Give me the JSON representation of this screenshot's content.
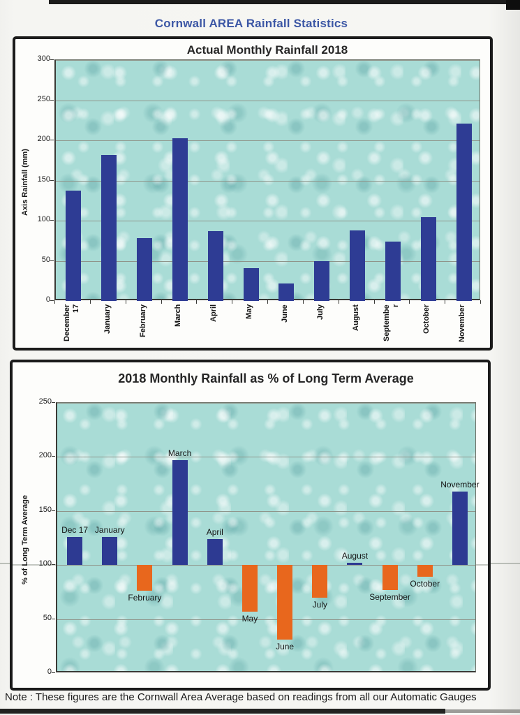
{
  "page": {
    "title": "Cornwall AREA Rainfall Statistics",
    "title_color": "#3c57a5",
    "note": "Note : These figures are the Cornwall Area Average based on readings from all our Automatic Gauges"
  },
  "chart_data": [
    {
      "type": "bar",
      "title": "Actual Monthly Rainfall 2018",
      "ylabel": "Axis Rainfall (mm)",
      "categories": [
        "December 17",
        "January",
        "February",
        "March",
        "April",
        "May",
        "June",
        "July",
        "August",
        "September",
        "October",
        "November"
      ],
      "category_display": [
        "December\n17",
        "January",
        "February",
        "March",
        "April",
        "May",
        "June",
        "July",
        "August",
        "Septembe\nr",
        "October",
        "November"
      ],
      "values": [
        137,
        182,
        78,
        203,
        87,
        41,
        22,
        50,
        88,
        74,
        104,
        221
      ],
      "ylim": [
        0,
        300
      ],
      "ytick_step": 50,
      "grid": true,
      "legend": "none",
      "bar_color": "#2e3c94",
      "plot_background": "water-droplets-teal"
    },
    {
      "type": "bar",
      "title": "2018 Monthly Rainfall as % of Long Term Average",
      "ylabel": "% of Long Term Average",
      "categories": [
        "Dec 17",
        "January",
        "February",
        "March",
        "April",
        "May",
        "June",
        "July",
        "August",
        "September",
        "October",
        "November"
      ],
      "values": [
        126,
        126,
        76,
        197,
        124,
        57,
        31,
        70,
        102,
        77,
        89,
        168
      ],
      "baseline": 100,
      "ylim": [
        0,
        250
      ],
      "ytick_step": 50,
      "grid": true,
      "legend": "none",
      "label_placement": "at-bar-ends",
      "bar_color_above": "#2d3a92",
      "bar_color_below": "#e8671d",
      "plot_background": "water-droplets-teal"
    }
  ]
}
